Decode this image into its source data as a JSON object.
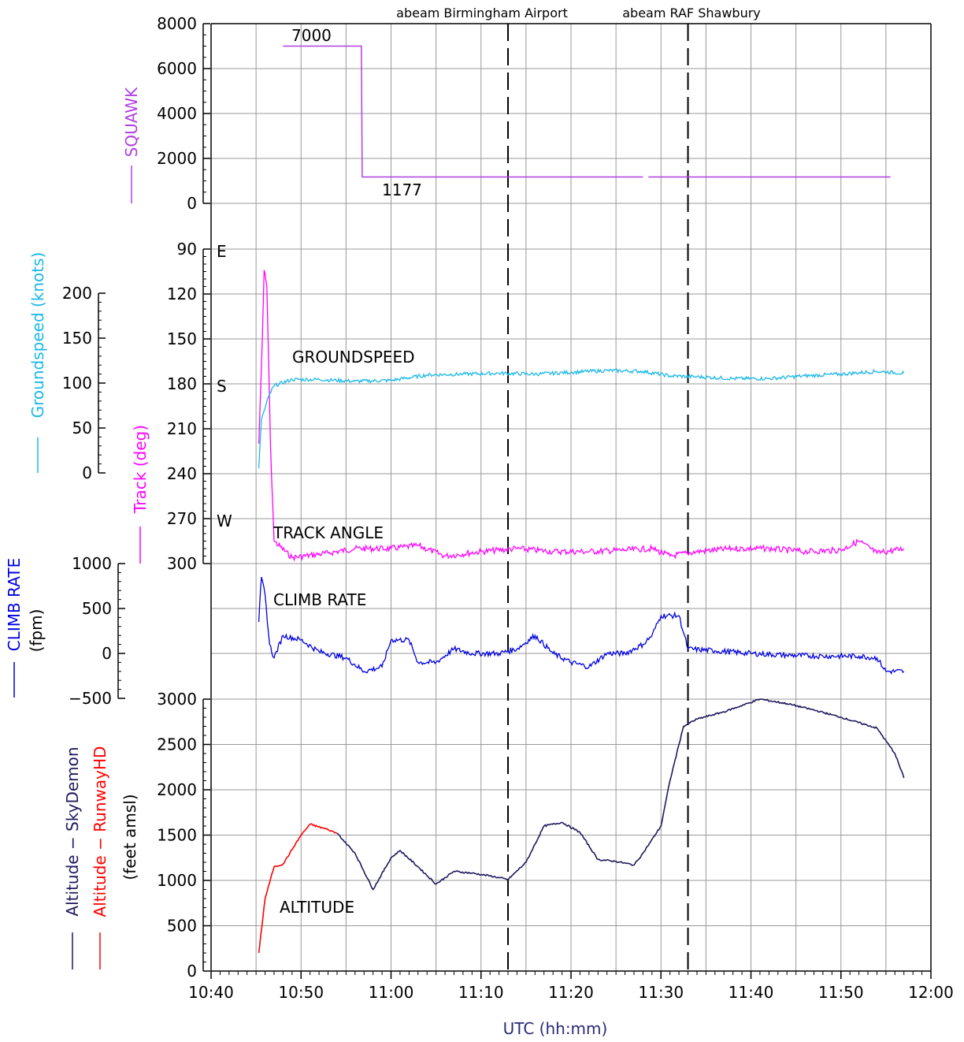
{
  "chart_data": {
    "type": "line",
    "x_axis": {
      "label": "UTC (hh:mm)",
      "ticks": [
        "10:40",
        "10:50",
        "11:00",
        "11:10",
        "11:20",
        "11:30",
        "11:40",
        "11:50",
        "12:00"
      ],
      "range_minutes_from_10_40": [
        0,
        80
      ]
    },
    "event_markers": [
      {
        "label": "abeam Birmingham Airport",
        "time": "11:13"
      },
      {
        "label": "abeam RAF Shawbury",
        "time": "11:33"
      }
    ],
    "panels": [
      {
        "id": "squawk",
        "axis_label": "SQUAWK",
        "ticks": [
          "0",
          "2000",
          "4000",
          "6000",
          "8000"
        ],
        "ylim": [
          0,
          8000
        ],
        "annotations": [
          "7000",
          "1177"
        ],
        "color": "#b040e0",
        "series": [
          {
            "name": "SQUAWK",
            "segments": [
              [
                [
                  "10:48",
                  7000
                ],
                [
                  "10:56.7",
                  7000
                ],
                [
                  "10:56.8",
                  1177
                ],
                [
                  "11:28",
                  1177
                ]
              ],
              [
                [
                  "11:28.6",
                  1177
                ],
                [
                  "11:55.5",
                  1177
                ]
              ]
            ]
          }
        ]
      },
      {
        "id": "track",
        "axis_label": "Track (deg)",
        "ticks": [
          "90",
          "120",
          "150",
          "180",
          "210",
          "240",
          "270",
          "300"
        ],
        "ylim": [
          90,
          300
        ],
        "inverted": true,
        "compass_labels": [
          "E",
          "S",
          "W"
        ],
        "annotation": "TRACK ANGLE",
        "color": "#ff00ff",
        "series": [
          {
            "name": "Track",
            "points": [
              [
                "10:45.3",
                220
              ],
              [
                "10:45.7",
                150
              ],
              [
                "10:45.9",
                104
              ],
              [
                "10:46.2",
                115
              ],
              [
                "10:46.6",
                220
              ],
              [
                "10:47.0",
                285
              ],
              [
                "10:49",
                296
              ],
              [
                "10:53",
                293
              ],
              [
                "10:56",
                290
              ],
              [
                "11:00",
                290
              ],
              [
                "11:03",
                288
              ],
              [
                "11:06",
                295
              ],
              [
                "11:10",
                292
              ],
              [
                "11:14",
                290
              ],
              [
                "11:18",
                292
              ],
              [
                "11:22",
                292
              ],
              [
                "11:26",
                291
              ],
              [
                "11:29",
                290
              ],
              [
                "11:31",
                295
              ],
              [
                "11:34",
                292
              ],
              [
                "11:38",
                290
              ],
              [
                "11:42",
                290
              ],
              [
                "11:46",
                292
              ],
              [
                "11:50",
                291
              ],
              [
                "11:52",
                285
              ],
              [
                "11:54",
                293
              ],
              [
                "11:57",
                290
              ]
            ]
          }
        ]
      },
      {
        "id": "groundspeed",
        "axis_label": "Groundspeed (knots)",
        "ticks": [
          "0",
          "50",
          "100",
          "150",
          "200"
        ],
        "ylim": [
          0,
          200
        ],
        "annotation": "GROUNDSPEED",
        "color": "#1ab8e8",
        "series": [
          {
            "name": "Groundspeed",
            "points": [
              [
                "10:45.3",
                5
              ],
              [
                "10:45.6",
                60
              ],
              [
                "10:46.0",
                72
              ],
              [
                "10:46.4",
                85
              ],
              [
                "10:47",
                97
              ],
              [
                "10:49",
                104
              ],
              [
                "10:52",
                104
              ],
              [
                "10:56",
                102
              ],
              [
                "11:00",
                103
              ],
              [
                "11:04",
                109
              ],
              [
                "11:08",
                110
              ],
              [
                "11:12",
                111
              ],
              [
                "11:16",
                110
              ],
              [
                "11:20",
                112
              ],
              [
                "11:24",
                114
              ],
              [
                "11:28",
                113
              ],
              [
                "11:31",
                108
              ],
              [
                "11:34",
                107
              ],
              [
                "11:38",
                105
              ],
              [
                "11:42",
                105
              ],
              [
                "11:46",
                108
              ],
              [
                "11:50",
                110
              ],
              [
                "11:54",
                113
              ],
              [
                "11:57",
                111
              ]
            ]
          }
        ]
      },
      {
        "id": "climb",
        "axis_label": "CLIMB RATE",
        "axis_sublabel": "(fpm)",
        "ticks": [
          "−500",
          "0",
          "500",
          "1000"
        ],
        "ylim": [
          -500,
          1000
        ],
        "annotation": "CLIMB RATE",
        "color": "#0000e0",
        "series": [
          {
            "name": "CLIMB RATE",
            "points": [
              [
                "10:45.3",
                350
              ],
              [
                "10:45.6",
                850
              ],
              [
                "10:46.0",
                650
              ],
              [
                "10:46.5",
                100
              ],
              [
                "10:47",
                -50
              ],
              [
                "10:48",
                200
              ],
              [
                "10:50",
                150
              ],
              [
                "10:52",
                20
              ],
              [
                "10:55",
                -50
              ],
              [
                "10:57",
                -200
              ],
              [
                "10:59",
                -150
              ],
              [
                "11:00",
                150
              ],
              [
                "11:02",
                150
              ],
              [
                "11:03",
                -100
              ],
              [
                "11:05",
                -100
              ],
              [
                "11:07",
                50
              ],
              [
                "11:09",
                0
              ],
              [
                "11:12",
                0
              ],
              [
                "11:14",
                50
              ],
              [
                "11:16",
                200
              ],
              [
                "11:18",
                0
              ],
              [
                "11:20",
                -100
              ],
              [
                "11:22",
                -150
              ],
              [
                "11:24",
                0
              ],
              [
                "11:26",
                0
              ],
              [
                "11:28",
                100
              ],
              [
                "11:29",
                200
              ],
              [
                "11:30",
                420
              ],
              [
                "11:32",
                420
              ],
              [
                "11:33",
                50
              ],
              [
                "11:36",
                30
              ],
              [
                "11:40",
                0
              ],
              [
                "11:44",
                -20
              ],
              [
                "11:48",
                -30
              ],
              [
                "11:52",
                -30
              ],
              [
                "11:54",
                -50
              ],
              [
                "11:55",
                -200
              ],
              [
                "11:57",
                -200
              ]
            ]
          }
        ]
      },
      {
        "id": "altitude",
        "axis_label": "(feet amsl)",
        "ticks": [
          "0",
          "500",
          "1000",
          "1500",
          "2000",
          "2500",
          "3000"
        ],
        "ylim": [
          0,
          3000
        ],
        "annotation": "ALTITUDE",
        "series": [
          {
            "name": "Altitude − SkyDemon",
            "color": "#1e1a5e",
            "points": [
              [
                "10:54",
                1520
              ],
              [
                "10:56",
                1300
              ],
              [
                "10:58",
                900
              ],
              [
                "11:00",
                1250
              ],
              [
                "11:01",
                1330
              ],
              [
                "11:03",
                1150
              ],
              [
                "11:05",
                960
              ],
              [
                "11:07",
                1100
              ],
              [
                "11:09",
                1080
              ],
              [
                "11:11",
                1050
              ],
              [
                "11:13",
                1010
              ],
              [
                "11:15",
                1200
              ],
              [
                "11:17",
                1600
              ],
              [
                "11:19",
                1640
              ],
              [
                "11:21",
                1530
              ],
              [
                "11:23",
                1230
              ],
              [
                "11:25",
                1210
              ],
              [
                "11:27",
                1170
              ],
              [
                "11:28",
                1300
              ],
              [
                "11:30",
                1600
              ],
              [
                "11:31",
                2100
              ],
              [
                "11:32.5",
                2700
              ],
              [
                "11:34",
                2780
              ],
              [
                "11:37",
                2860
              ],
              [
                "11:41",
                3000
              ],
              [
                "11:44",
                2950
              ],
              [
                "11:47",
                2880
              ],
              [
                "11:50",
                2800
              ],
              [
                "11:54",
                2680
              ],
              [
                "11:56",
                2400
              ],
              [
                "11:57",
                2130
              ]
            ]
          },
          {
            "name": "Altitude − RunwayHD",
            "color": "#ff0000",
            "points": [
              [
                "10:45.3",
                200
              ],
              [
                "10:46",
                800
              ],
              [
                "10:47",
                1150
              ],
              [
                "10:48",
                1180
              ],
              [
                "10:50",
                1500
              ],
              [
                "10:51",
                1620
              ],
              [
                "10:53",
                1560
              ],
              [
                "10:54",
                1520
              ]
            ]
          }
        ]
      }
    ]
  }
}
